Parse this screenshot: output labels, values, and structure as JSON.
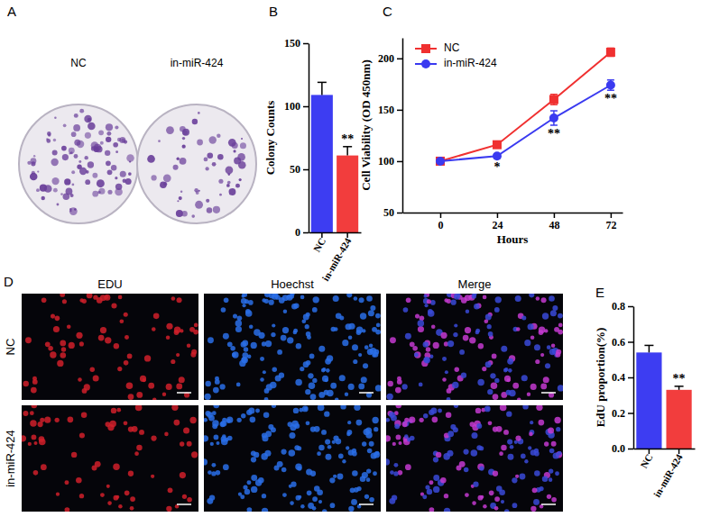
{
  "image_panels": [
    {
      "panel": "A",
      "labels": [
        "NC",
        "in-miR-424"
      ]
    },
    {
      "panel": "D",
      "columns": [
        "EDU",
        "Hoechst",
        "Merge"
      ],
      "rows": [
        "NC",
        "in-miR-424"
      ]
    }
  ],
  "chart_data": [
    {
      "panel": "B",
      "type": "bar",
      "categories": [
        "NC",
        "in-miR-424"
      ],
      "values": [
        109,
        61
      ],
      "errors": [
        10,
        7
      ],
      "colors": [
        "#3d3df2",
        "#f23d3d"
      ],
      "y_label": "Colony Counts",
      "ylim": [
        0,
        150
      ],
      "yticks": [
        0,
        50,
        100,
        150
      ],
      "annotations": [
        {
          "category": "in-miR-424",
          "text": "**"
        }
      ]
    },
    {
      "panel": "C",
      "type": "line",
      "x": [
        0,
        24,
        48,
        72
      ],
      "series": [
        {
          "name": "NC",
          "color": "#f03030",
          "marker": "square",
          "values": [
            100,
            116,
            160,
            206
          ],
          "errors": [
            1,
            2,
            5,
            4
          ]
        },
        {
          "name": "in-miR-424",
          "color": "#3a3af0",
          "marker": "circle",
          "values": [
            100,
            105,
            142,
            174
          ],
          "errors": [
            1,
            2,
            7,
            5
          ]
        }
      ],
      "x_label": "Hours",
      "y_label": "Cell Viability (OD 450nm)",
      "xlim": [
        -16,
        77
      ],
      "xticks": [
        0,
        24,
        48,
        72
      ],
      "ylim": [
        50,
        220
      ],
      "yticks": [
        50,
        100,
        150,
        200
      ],
      "legend": "upper left",
      "annotations": [
        {
          "x": 24,
          "text": "*"
        },
        {
          "x": 48,
          "text": "**"
        },
        {
          "x": 72,
          "text": "**"
        }
      ]
    },
    {
      "panel": "E",
      "type": "bar",
      "categories": [
        "NC",
        "in-miR-424"
      ],
      "values": [
        0.54,
        0.33
      ],
      "errors": [
        0.04,
        0.02
      ],
      "colors": [
        "#3d3df2",
        "#f23d3d"
      ],
      "y_label": "EdU proportion(%)",
      "ylim": [
        0,
        0.8
      ],
      "yticks": [
        {
          "value": 0,
          "label": "0.0"
        },
        0.2,
        0.4,
        0.6,
        0.8
      ],
      "annotations": [
        {
          "category": "in-miR-424",
          "text": "**"
        }
      ]
    }
  ]
}
